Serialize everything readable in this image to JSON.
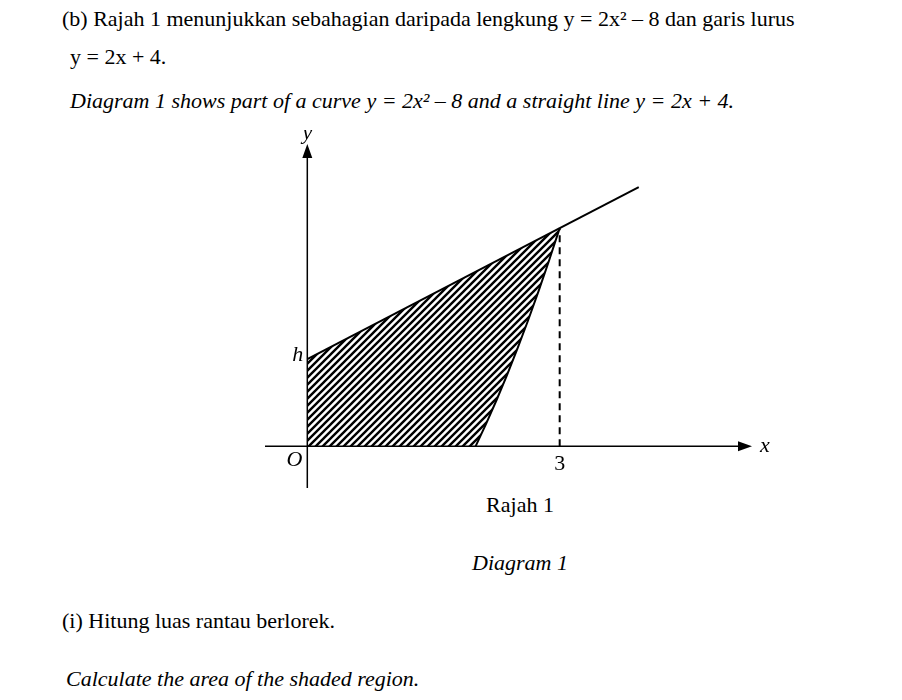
{
  "question": {
    "label": "(b)",
    "text_malay": [
      "Rajah 1 menunjukkan sebahagian daripada lengkung y = 2x² – 8 dan garis lurus",
      "y = 2x + 4."
    ],
    "text_english": "Diagram 1 shows part of a curve y = 2x² – 8 and a straight line y = 2x + 4."
  },
  "chart_data": {
    "type": "scatter",
    "x_label": "x",
    "y_label": "y",
    "xlim": [
      -0.8,
      5.5
    ],
    "ylim": [
      -2,
      14.5
    ],
    "tick_labels": false,
    "grid": false,
    "series": [
      {
        "x": [
          0,
          3.94
        ],
        "values": [
          4,
          11.88
        ],
        "color": "#000000",
        "line_style": "solid",
        "marker": "none"
      },
      {
        "x": [
          2,
          2.125,
          2.25,
          2.375,
          2.5,
          2.625,
          2.75,
          2.875,
          3
        ],
        "values": [
          0,
          1.03125,
          2.125,
          3.28125,
          4.5,
          5.78125,
          7.125,
          8.53125,
          10
        ],
        "color": "#000000",
        "line_style": "solid",
        "marker": "none"
      },
      {
        "x": [
          3,
          3
        ],
        "values": [
          0,
          10
        ],
        "color": "#000000",
        "line_style": "dashed",
        "marker": "none"
      }
    ],
    "shaded_region": {
      "x": [
        0,
        0,
        3,
        2.875,
        2.75,
        2.625,
        2.5,
        2.375,
        2.25,
        2.125,
        2,
        0
      ],
      "y": [
        0,
        4,
        10,
        8.53125,
        7.125,
        5.78125,
        4.5,
        3.28125,
        2.125,
        1.03125,
        0,
        0
      ]
    },
    "annotations": [
      {
        "text": "h",
        "x": 0,
        "y": 4
      },
      {
        "text": "O",
        "x": 0,
        "y": 0
      },
      {
        "text": "3",
        "x": 3,
        "y": 0
      }
    ]
  },
  "caption": {
    "malay": "Rajah 1",
    "english": "Diagram 1"
  },
  "part": {
    "label": "(i)",
    "text_malay": "Hitung luas rantau berlorek.",
    "text_english": "Calculate the area of the shaded region."
  }
}
